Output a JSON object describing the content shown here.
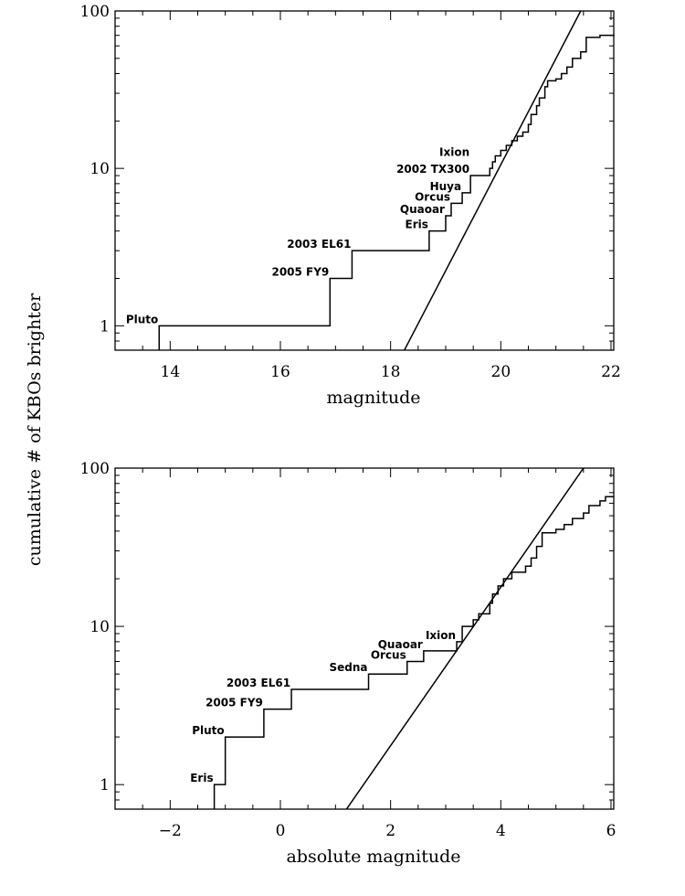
{
  "ylabel": "cumulative # of KBOs brighter",
  "chart_data": [
    {
      "type": "line",
      "title": "",
      "xlabel": "magnitude",
      "ylabel": "cumulative # of KBOs brighter",
      "xlim": [
        13,
        22.05
      ],
      "ylim": [
        0.7,
        100
      ],
      "yscale": "log",
      "xticks": [
        "14",
        "16",
        "18",
        "20",
        "22"
      ],
      "xtick_values": [
        14,
        16,
        18,
        20,
        22
      ],
      "yticks": [
        "1",
        "10",
        "100"
      ],
      "ytick_values": [
        1,
        10,
        100
      ],
      "steps": [
        [
          13.8,
          1
        ],
        [
          16.9,
          2
        ],
        [
          17.3,
          3
        ],
        [
          18.7,
          4
        ],
        [
          19.0,
          5
        ],
        [
          19.1,
          6
        ],
        [
          19.3,
          7
        ],
        [
          19.45,
          9
        ],
        [
          19.8,
          10
        ],
        [
          19.85,
          11
        ],
        [
          19.9,
          12
        ],
        [
          20.0,
          13
        ],
        [
          20.1,
          14
        ],
        [
          20.2,
          15
        ],
        [
          20.3,
          16
        ],
        [
          20.4,
          17
        ],
        [
          20.5,
          19
        ],
        [
          20.55,
          22
        ],
        [
          20.65,
          25
        ],
        [
          20.7,
          28
        ],
        [
          20.8,
          33
        ],
        [
          20.85,
          36
        ],
        [
          21.0,
          37
        ],
        [
          21.1,
          40
        ],
        [
          21.2,
          44
        ],
        [
          21.3,
          50
        ],
        [
          21.45,
          55
        ],
        [
          21.55,
          68
        ],
        [
          21.8,
          70
        ],
        [
          22.05,
          71
        ]
      ],
      "fit_line": [
        [
          18.25,
          0.7
        ],
        [
          21.45,
          100
        ]
      ],
      "annotations": [
        {
          "text": "Pluto",
          "x": 13.8,
          "n": 1
        },
        {
          "text": "2005 FY9",
          "x": 16.9,
          "n": 2
        },
        {
          "text": "2003 EL61",
          "x": 17.3,
          "n": 3
        },
        {
          "text": "Eris",
          "x": 18.7,
          "n": 4
        },
        {
          "text": "Quaoar",
          "x": 19.0,
          "n": 5
        },
        {
          "text": "Orcus",
          "x": 19.1,
          "n": 6
        },
        {
          "text": "Huya",
          "x": 19.3,
          "n": 7
        },
        {
          "text": "2002 TX300",
          "x": 19.45,
          "n": 9
        },
        {
          "text": "Ixion",
          "x": 19.45,
          "n": 11.5
        }
      ]
    },
    {
      "type": "line",
      "title": "",
      "xlabel": "absolute magnitude",
      "ylabel": "cumulative # of KBOs brighter",
      "xlim": [
        -3,
        6.05
      ],
      "ylim": [
        0.7,
        100
      ],
      "yscale": "log",
      "xticks": [
        "−2",
        "0",
        "2",
        "4",
        "6"
      ],
      "xtick_values": [
        -2,
        0,
        2,
        4,
        6
      ],
      "yticks": [
        "1",
        "10",
        "100"
      ],
      "ytick_values": [
        1,
        10,
        100
      ],
      "steps": [
        [
          -1.2,
          1
        ],
        [
          -1.0,
          2
        ],
        [
          -0.3,
          3
        ],
        [
          0.2,
          4
        ],
        [
          1.6,
          5
        ],
        [
          2.3,
          6
        ],
        [
          2.6,
          7
        ],
        [
          3.2,
          8
        ],
        [
          3.3,
          10
        ],
        [
          3.5,
          11
        ],
        [
          3.6,
          12
        ],
        [
          3.8,
          14
        ],
        [
          3.85,
          16
        ],
        [
          3.95,
          18
        ],
        [
          4.05,
          20
        ],
        [
          4.2,
          22
        ],
        [
          4.45,
          24
        ],
        [
          4.55,
          27
        ],
        [
          4.65,
          32
        ],
        [
          4.75,
          39
        ],
        [
          5.0,
          41
        ],
        [
          5.15,
          44
        ],
        [
          5.3,
          48
        ],
        [
          5.5,
          52
        ],
        [
          5.6,
          58
        ],
        [
          5.8,
          62
        ],
        [
          5.9,
          66
        ],
        [
          6.05,
          66
        ]
      ],
      "fit_line": [
        [
          1.2,
          0.7
        ],
        [
          5.5,
          100
        ]
      ],
      "annotations": [
        {
          "text": "Eris",
          "x": -1.2,
          "n": 1
        },
        {
          "text": "Pluto",
          "x": -1.0,
          "n": 2
        },
        {
          "text": "2005 FY9",
          "x": -0.3,
          "n": 3
        },
        {
          "text": "2003 EL61",
          "x": 0.2,
          "n": 4
        },
        {
          "text": "Sedna",
          "x": 1.6,
          "n": 5
        },
        {
          "text": "Orcus",
          "x": 2.3,
          "n": 6
        },
        {
          "text": "Quaoar",
          "x": 2.6,
          "n": 7
        },
        {
          "text": "Ixion",
          "x": 3.2,
          "n": 8
        }
      ]
    }
  ]
}
